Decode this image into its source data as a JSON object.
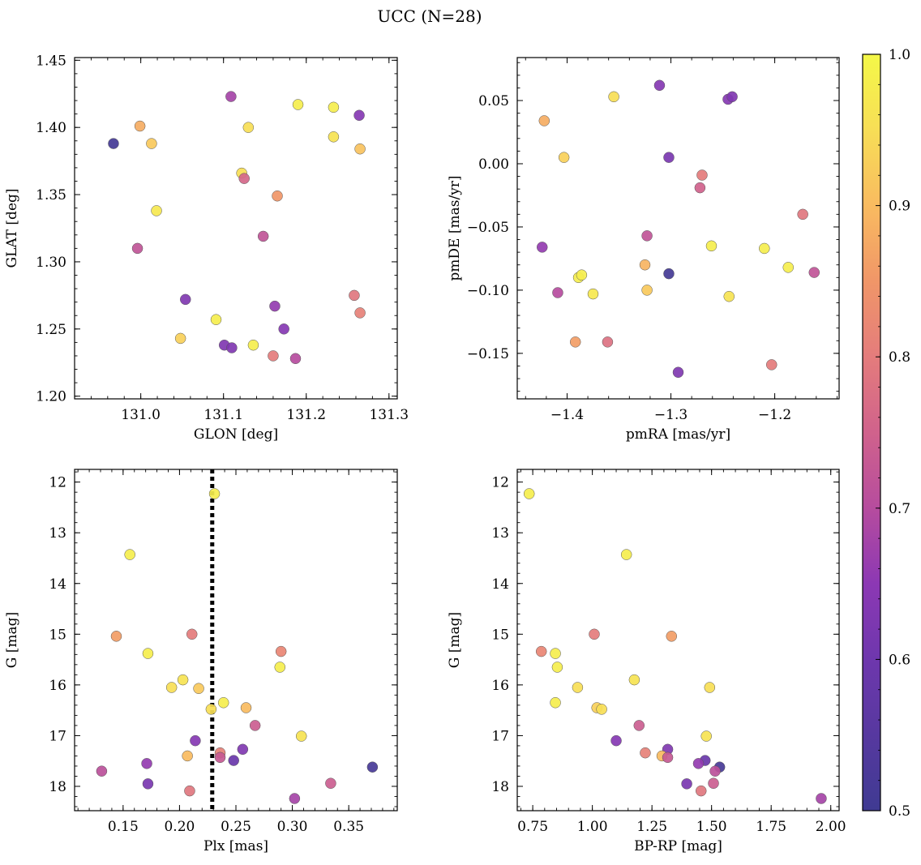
{
  "figure": {
    "title": "UCC (N=28)"
  },
  "colorbar": {
    "range": [
      0.5,
      1.0
    ],
    "ticks": [
      "0.5",
      "0.6",
      "0.7",
      "0.8",
      "0.9",
      "1.0"
    ],
    "colormap": "plasma"
  },
  "chart_data": [
    {
      "type": "scatter",
      "xlabel": "GLON [deg]",
      "ylabel": "GLAT [deg]",
      "xlim": [
        130.92,
        131.31
      ],
      "ylim": [
        1.198,
        1.452
      ],
      "xticks": [
        "131.0",
        "131.1",
        "131.2",
        "131.3"
      ],
      "yticks": [
        "1.20",
        "1.25",
        "1.30",
        "1.35",
        "1.40",
        "1.45"
      ],
      "points": [
        {
          "x": 130.967,
          "y": 1.388,
          "c": 0.51
        },
        {
          "x": 130.999,
          "y": 1.401,
          "c": 0.88
        },
        {
          "x": 131.013,
          "y": 1.388,
          "c": 0.92
        },
        {
          "x": 131.019,
          "y": 1.338,
          "c": 0.97
        },
        {
          "x": 130.996,
          "y": 1.31,
          "c": 0.72
        },
        {
          "x": 131.054,
          "y": 1.272,
          "c": 0.63
        },
        {
          "x": 131.048,
          "y": 1.243,
          "c": 0.93
        },
        {
          "x": 131.091,
          "y": 1.257,
          "c": 0.98
        },
        {
          "x": 131.101,
          "y": 1.238,
          "c": 0.63
        },
        {
          "x": 131.11,
          "y": 1.236,
          "c": 0.63
        },
        {
          "x": 131.109,
          "y": 1.423,
          "c": 0.68
        },
        {
          "x": 131.122,
          "y": 1.366,
          "c": 0.95
        },
        {
          "x": 131.125,
          "y": 1.362,
          "c": 0.76
        },
        {
          "x": 131.13,
          "y": 1.4,
          "c": 0.95
        },
        {
          "x": 131.136,
          "y": 1.238,
          "c": 0.98
        },
        {
          "x": 131.148,
          "y": 1.319,
          "c": 0.72
        },
        {
          "x": 131.162,
          "y": 1.267,
          "c": 0.66
        },
        {
          "x": 131.165,
          "y": 1.349,
          "c": 0.85
        },
        {
          "x": 131.16,
          "y": 1.23,
          "c": 0.8
        },
        {
          "x": 131.173,
          "y": 1.25,
          "c": 0.64
        },
        {
          "x": 131.187,
          "y": 1.228,
          "c": 0.7
        },
        {
          "x": 131.19,
          "y": 1.417,
          "c": 0.98
        },
        {
          "x": 131.233,
          "y": 1.415,
          "c": 0.98
        },
        {
          "x": 131.233,
          "y": 1.393,
          "c": 0.96
        },
        {
          "x": 131.258,
          "y": 1.275,
          "c": 0.79
        },
        {
          "x": 131.264,
          "y": 1.409,
          "c": 0.64
        },
        {
          "x": 131.265,
          "y": 1.384,
          "c": 0.91
        },
        {
          "x": 131.265,
          "y": 1.262,
          "c": 0.81
        }
      ]
    },
    {
      "type": "scatter",
      "xlabel": "pmRA [mas/yr]",
      "ylabel": "pmDE [mas/yr]",
      "xlim": [
        -1.448,
        -1.138
      ],
      "ylim": [
        -0.186,
        0.084
      ],
      "xticks": [
        "−1.4",
        "−1.3",
        "−1.2"
      ],
      "yticks": [
        "−0.15",
        "−0.10",
        "−0.05",
        "0.00",
        "0.05"
      ],
      "points": [
        {
          "x": -1.422,
          "y": 0.034,
          "c": 0.88
        },
        {
          "x": -1.403,
          "y": 0.005,
          "c": 0.93
        },
        {
          "x": -1.424,
          "y": -0.066,
          "c": 0.66
        },
        {
          "x": -1.409,
          "y": -0.102,
          "c": 0.7
        },
        {
          "x": -1.389,
          "y": -0.09,
          "c": 0.98
        },
        {
          "x": -1.386,
          "y": -0.088,
          "c": 0.98
        },
        {
          "x": -1.375,
          "y": -0.103,
          "c": 0.97
        },
        {
          "x": -1.392,
          "y": -0.141,
          "c": 0.86
        },
        {
          "x": -1.361,
          "y": -0.141,
          "c": 0.78
        },
        {
          "x": -1.355,
          "y": 0.053,
          "c": 0.95
        },
        {
          "x": -1.311,
          "y": 0.062,
          "c": 0.64
        },
        {
          "x": -1.302,
          "y": 0.005,
          "c": 0.62
        },
        {
          "x": -1.323,
          "y": -0.057,
          "c": 0.72
        },
        {
          "x": -1.325,
          "y": -0.08,
          "c": 0.89
        },
        {
          "x": -1.323,
          "y": -0.1,
          "c": 0.92
        },
        {
          "x": -1.302,
          "y": -0.087,
          "c": 0.51
        },
        {
          "x": -1.293,
          "y": -0.165,
          "c": 0.63
        },
        {
          "x": -1.27,
          "y": -0.009,
          "c": 0.8
        },
        {
          "x": -1.272,
          "y": -0.019,
          "c": 0.75
        },
        {
          "x": -1.261,
          "y": -0.065,
          "c": 0.98
        },
        {
          "x": -1.245,
          "y": 0.051,
          "c": 0.64
        },
        {
          "x": -1.241,
          "y": 0.053,
          "c": 0.63
        },
        {
          "x": -1.244,
          "y": -0.105,
          "c": 0.96
        },
        {
          "x": -1.21,
          "y": -0.067,
          "c": 0.98
        },
        {
          "x": -1.203,
          "y": -0.159,
          "c": 0.8
        },
        {
          "x": -1.187,
          "y": -0.082,
          "c": 0.98
        },
        {
          "x": -1.173,
          "y": -0.04,
          "c": 0.79
        },
        {
          "x": -1.162,
          "y": -0.086,
          "c": 0.72
        }
      ]
    },
    {
      "type": "scatter",
      "xlabel": "Plx [mas]",
      "ylabel": "G [mag]",
      "xlim": [
        0.107,
        0.393
      ],
      "ylim": [
        18.48,
        11.75
      ],
      "y_inverted": true,
      "xticks": [
        "0.15",
        "0.20",
        "0.25",
        "0.30",
        "0.35"
      ],
      "yticks": [
        "12",
        "13",
        "14",
        "15",
        "16",
        "17",
        "18"
      ],
      "vline": {
        "x": 0.229,
        "style": "dotted"
      },
      "points": [
        {
          "x": 0.231,
          "y": 12.23,
          "c": 0.98
        },
        {
          "x": 0.156,
          "y": 13.43,
          "c": 0.98
        },
        {
          "x": 0.144,
          "y": 15.04,
          "c": 0.86
        },
        {
          "x": 0.211,
          "y": 15.0,
          "c": 0.8
        },
        {
          "x": 0.172,
          "y": 15.38,
          "c": 0.98
        },
        {
          "x": 0.29,
          "y": 15.34,
          "c": 0.82
        },
        {
          "x": 0.289,
          "y": 15.65,
          "c": 0.98
        },
        {
          "x": 0.203,
          "y": 15.9,
          "c": 0.96
        },
        {
          "x": 0.193,
          "y": 16.05,
          "c": 0.95
        },
        {
          "x": 0.217,
          "y": 16.07,
          "c": 0.92
        },
        {
          "x": 0.239,
          "y": 16.35,
          "c": 0.98
        },
        {
          "x": 0.228,
          "y": 16.48,
          "c": 0.95
        },
        {
          "x": 0.259,
          "y": 16.45,
          "c": 0.9
        },
        {
          "x": 0.267,
          "y": 16.8,
          "c": 0.74
        },
        {
          "x": 0.308,
          "y": 17.01,
          "c": 0.96
        },
        {
          "x": 0.214,
          "y": 17.1,
          "c": 0.64
        },
        {
          "x": 0.236,
          "y": 17.34,
          "c": 0.81
        },
        {
          "x": 0.256,
          "y": 17.27,
          "c": 0.63
        },
        {
          "x": 0.207,
          "y": 17.4,
          "c": 0.9
        },
        {
          "x": 0.236,
          "y": 17.43,
          "c": 0.73
        },
        {
          "x": 0.248,
          "y": 17.49,
          "c": 0.59
        },
        {
          "x": 0.171,
          "y": 17.55,
          "c": 0.66
        },
        {
          "x": 0.131,
          "y": 17.7,
          "c": 0.71
        },
        {
          "x": 0.371,
          "y": 17.62,
          "c": 0.52
        },
        {
          "x": 0.172,
          "y": 17.95,
          "c": 0.62
        },
        {
          "x": 0.334,
          "y": 17.94,
          "c": 0.74
        },
        {
          "x": 0.209,
          "y": 18.09,
          "c": 0.79
        },
        {
          "x": 0.302,
          "y": 18.24,
          "c": 0.68
        }
      ]
    },
    {
      "type": "scatter",
      "xlabel": "BP-RP [mag]",
      "ylabel": "G [mag]",
      "xlim": [
        0.685,
        2.035
      ],
      "ylim": [
        18.48,
        11.75
      ],
      "y_inverted": true,
      "xticks": [
        "0.75",
        "1.00",
        "1.25",
        "1.50",
        "1.75",
        "2.00"
      ],
      "yticks": [
        "12",
        "13",
        "14",
        "15",
        "16",
        "17",
        "18"
      ],
      "points": [
        {
          "x": 0.735,
          "y": 12.23,
          "c": 0.98
        },
        {
          "x": 1.143,
          "y": 13.43,
          "c": 0.98
        },
        {
          "x": 1.008,
          "y": 15.0,
          "c": 0.8
        },
        {
          "x": 1.332,
          "y": 15.04,
          "c": 0.86
        },
        {
          "x": 0.786,
          "y": 15.34,
          "c": 0.82
        },
        {
          "x": 0.845,
          "y": 15.38,
          "c": 0.98
        },
        {
          "x": 0.853,
          "y": 15.65,
          "c": 0.98
        },
        {
          "x": 1.176,
          "y": 15.9,
          "c": 0.96
        },
        {
          "x": 0.938,
          "y": 16.05,
          "c": 0.95
        },
        {
          "x": 1.492,
          "y": 16.05,
          "c": 0.95
        },
        {
          "x": 0.845,
          "y": 16.35,
          "c": 0.98
        },
        {
          "x": 1.019,
          "y": 16.45,
          "c": 0.93
        },
        {
          "x": 1.039,
          "y": 16.48,
          "c": 0.95
        },
        {
          "x": 1.196,
          "y": 16.8,
          "c": 0.74
        },
        {
          "x": 1.478,
          "y": 17.01,
          "c": 0.96
        },
        {
          "x": 1.1,
          "y": 17.1,
          "c": 0.64
        },
        {
          "x": 1.222,
          "y": 17.34,
          "c": 0.81
        },
        {
          "x": 1.316,
          "y": 17.27,
          "c": 0.63
        },
        {
          "x": 1.292,
          "y": 17.4,
          "c": 0.9
        },
        {
          "x": 1.316,
          "y": 17.43,
          "c": 0.73
        },
        {
          "x": 1.473,
          "y": 17.49,
          "c": 0.59
        },
        {
          "x": 1.445,
          "y": 17.55,
          "c": 0.66
        },
        {
          "x": 1.534,
          "y": 17.62,
          "c": 0.52
        },
        {
          "x": 1.515,
          "y": 17.7,
          "c": 0.71
        },
        {
          "x": 1.396,
          "y": 17.95,
          "c": 0.62
        },
        {
          "x": 1.508,
          "y": 17.94,
          "c": 0.74
        },
        {
          "x": 1.456,
          "y": 18.09,
          "c": 0.79
        },
        {
          "x": 1.96,
          "y": 18.24,
          "c": 0.68
        }
      ]
    }
  ]
}
